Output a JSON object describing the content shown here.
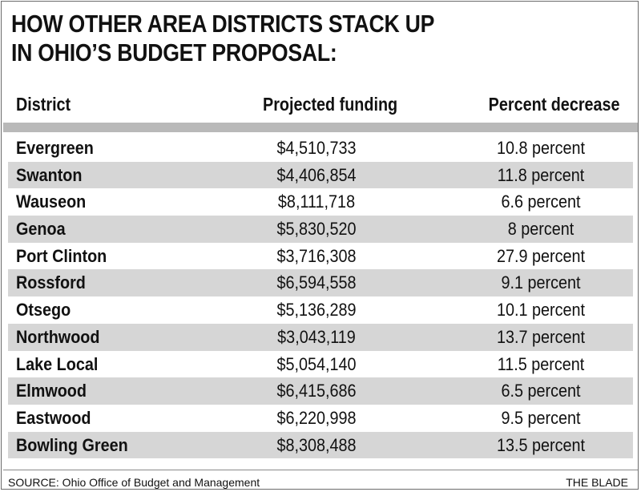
{
  "title": {
    "line1": "HOW OTHER AREA DISTRICTS STACK UP",
    "line2": "IN OHIO’S BUDGET PROPOSAL:"
  },
  "chart_data": {
    "type": "table",
    "columns": [
      "District",
      "Projected funding",
      "Percent decrease"
    ],
    "rows": [
      {
        "district": "Evergreen",
        "funding": "$4,510,733",
        "percent": "10.8 percent"
      },
      {
        "district": "Swanton",
        "funding": "$4,406,854",
        "percent": "11.8 percent"
      },
      {
        "district": "Wauseon",
        "funding": "$8,111,718",
        "percent": "6.6 percent"
      },
      {
        "district": "Genoa",
        "funding": "$5,830,520",
        "percent": "8 percent"
      },
      {
        "district": "Port Clinton",
        "funding": "$3,716,308",
        "percent": "27.9 percent"
      },
      {
        "district": "Rossford",
        "funding": "$6,594,558",
        "percent": "9.1 percent"
      },
      {
        "district": "Otsego",
        "funding": "$5,136,289",
        "percent": "10.1 percent"
      },
      {
        "district": "Northwood",
        "funding": "$3,043,119",
        "percent": "13.7 percent"
      },
      {
        "district": "Lake Local",
        "funding": "$5,054,140",
        "percent": "11.5 percent"
      },
      {
        "district": "Elmwood",
        "funding": "$6,415,686",
        "percent": "6.5 percent"
      },
      {
        "district": "Eastwood",
        "funding": "$6,220,998",
        "percent": "9.5 percent"
      },
      {
        "district": "Bowling Green",
        "funding": "$8,308,488",
        "percent": "13.5 percent"
      }
    ]
  },
  "footer": {
    "source": "SOURCE: Ohio Office of Budget and Management",
    "credit": "THE BLADE"
  },
  "colors": {
    "shaded_row": "#d6d6d6",
    "header_bar": "#b9b9b9",
    "text": "#111111"
  }
}
